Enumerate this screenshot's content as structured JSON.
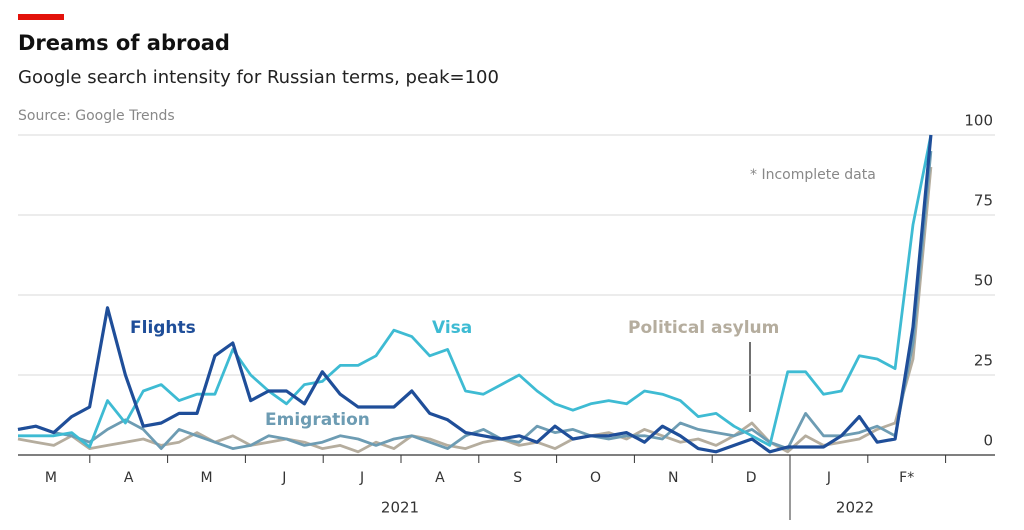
{
  "chart_data": {
    "type": "line",
    "title": "Dreams of abroad",
    "subtitle": "Google search intensity for Russian terms, peak=100",
    "source": "Source: Google Trends",
    "annotation": "* Incomplete data",
    "months": [
      "M",
      "A",
      "M",
      "J",
      "J",
      "A",
      "S",
      "O",
      "N",
      "D",
      "J",
      "F*"
    ],
    "years": [
      "2021",
      "2022"
    ],
    "ylim": [
      0,
      100
    ],
    "yticks": [
      0,
      25,
      50,
      75,
      100
    ],
    "grid": true,
    "series": [
      {
        "name": "Political asylum",
        "color": "#b5ad9e",
        "values": [
          5,
          4,
          3,
          6,
          2,
          3,
          4,
          5,
          3,
          4,
          7,
          4,
          6,
          3,
          4,
          5,
          4,
          2,
          3,
          1,
          4,
          2,
          6,
          5,
          3,
          2,
          4,
          5,
          3,
          4,
          2,
          5,
          6,
          7,
          5,
          8,
          6,
          4,
          5,
          3,
          6,
          10,
          4,
          1,
          6,
          3,
          4,
          5,
          8,
          10,
          30,
          90
        ]
      },
      {
        "name": "Emigration",
        "color": "#6d9cb3",
        "values": [
          8,
          9,
          7,
          6,
          4,
          8,
          11,
          8,
          2,
          8,
          6,
          4,
          2,
          3,
          6,
          5,
          3,
          4,
          6,
          5,
          3,
          5,
          6,
          4,
          2,
          6,
          8,
          5,
          4,
          9,
          7,
          8,
          6,
          5,
          6,
          6,
          5,
          10,
          8,
          7,
          6,
          8,
          4,
          2,
          13,
          6,
          6,
          7,
          9,
          6,
          35,
          95
        ]
      },
      {
        "name": "Visa",
        "color": "#3ebbd3",
        "values": [
          6,
          6,
          6,
          7,
          2.5,
          17,
          10,
          20,
          22,
          17,
          19,
          19,
          33,
          25,
          20,
          16,
          22,
          23,
          28,
          28,
          31,
          39,
          37,
          31,
          33,
          20,
          19,
          22,
          25,
          20,
          16,
          14,
          16,
          17,
          16,
          20,
          19,
          17,
          12,
          13,
          9,
          6,
          3,
          26,
          26,
          19,
          20,
          31,
          30,
          27,
          72,
          100
        ]
      },
      {
        "name": "Flights",
        "color": "#1f4e99",
        "values": [
          8,
          9,
          7,
          12,
          15,
          46,
          25,
          9,
          10,
          13,
          13,
          31,
          35,
          17,
          20,
          20,
          16,
          26,
          19,
          15,
          15,
          15,
          20,
          13,
          11,
          7,
          6,
          5,
          6,
          4,
          9,
          5,
          6,
          6,
          7,
          4,
          9,
          6,
          2,
          1,
          3,
          5,
          1,
          2.5,
          2.5,
          2.5,
          6,
          12,
          4,
          5,
          40,
          100
        ]
      }
    ]
  }
}
